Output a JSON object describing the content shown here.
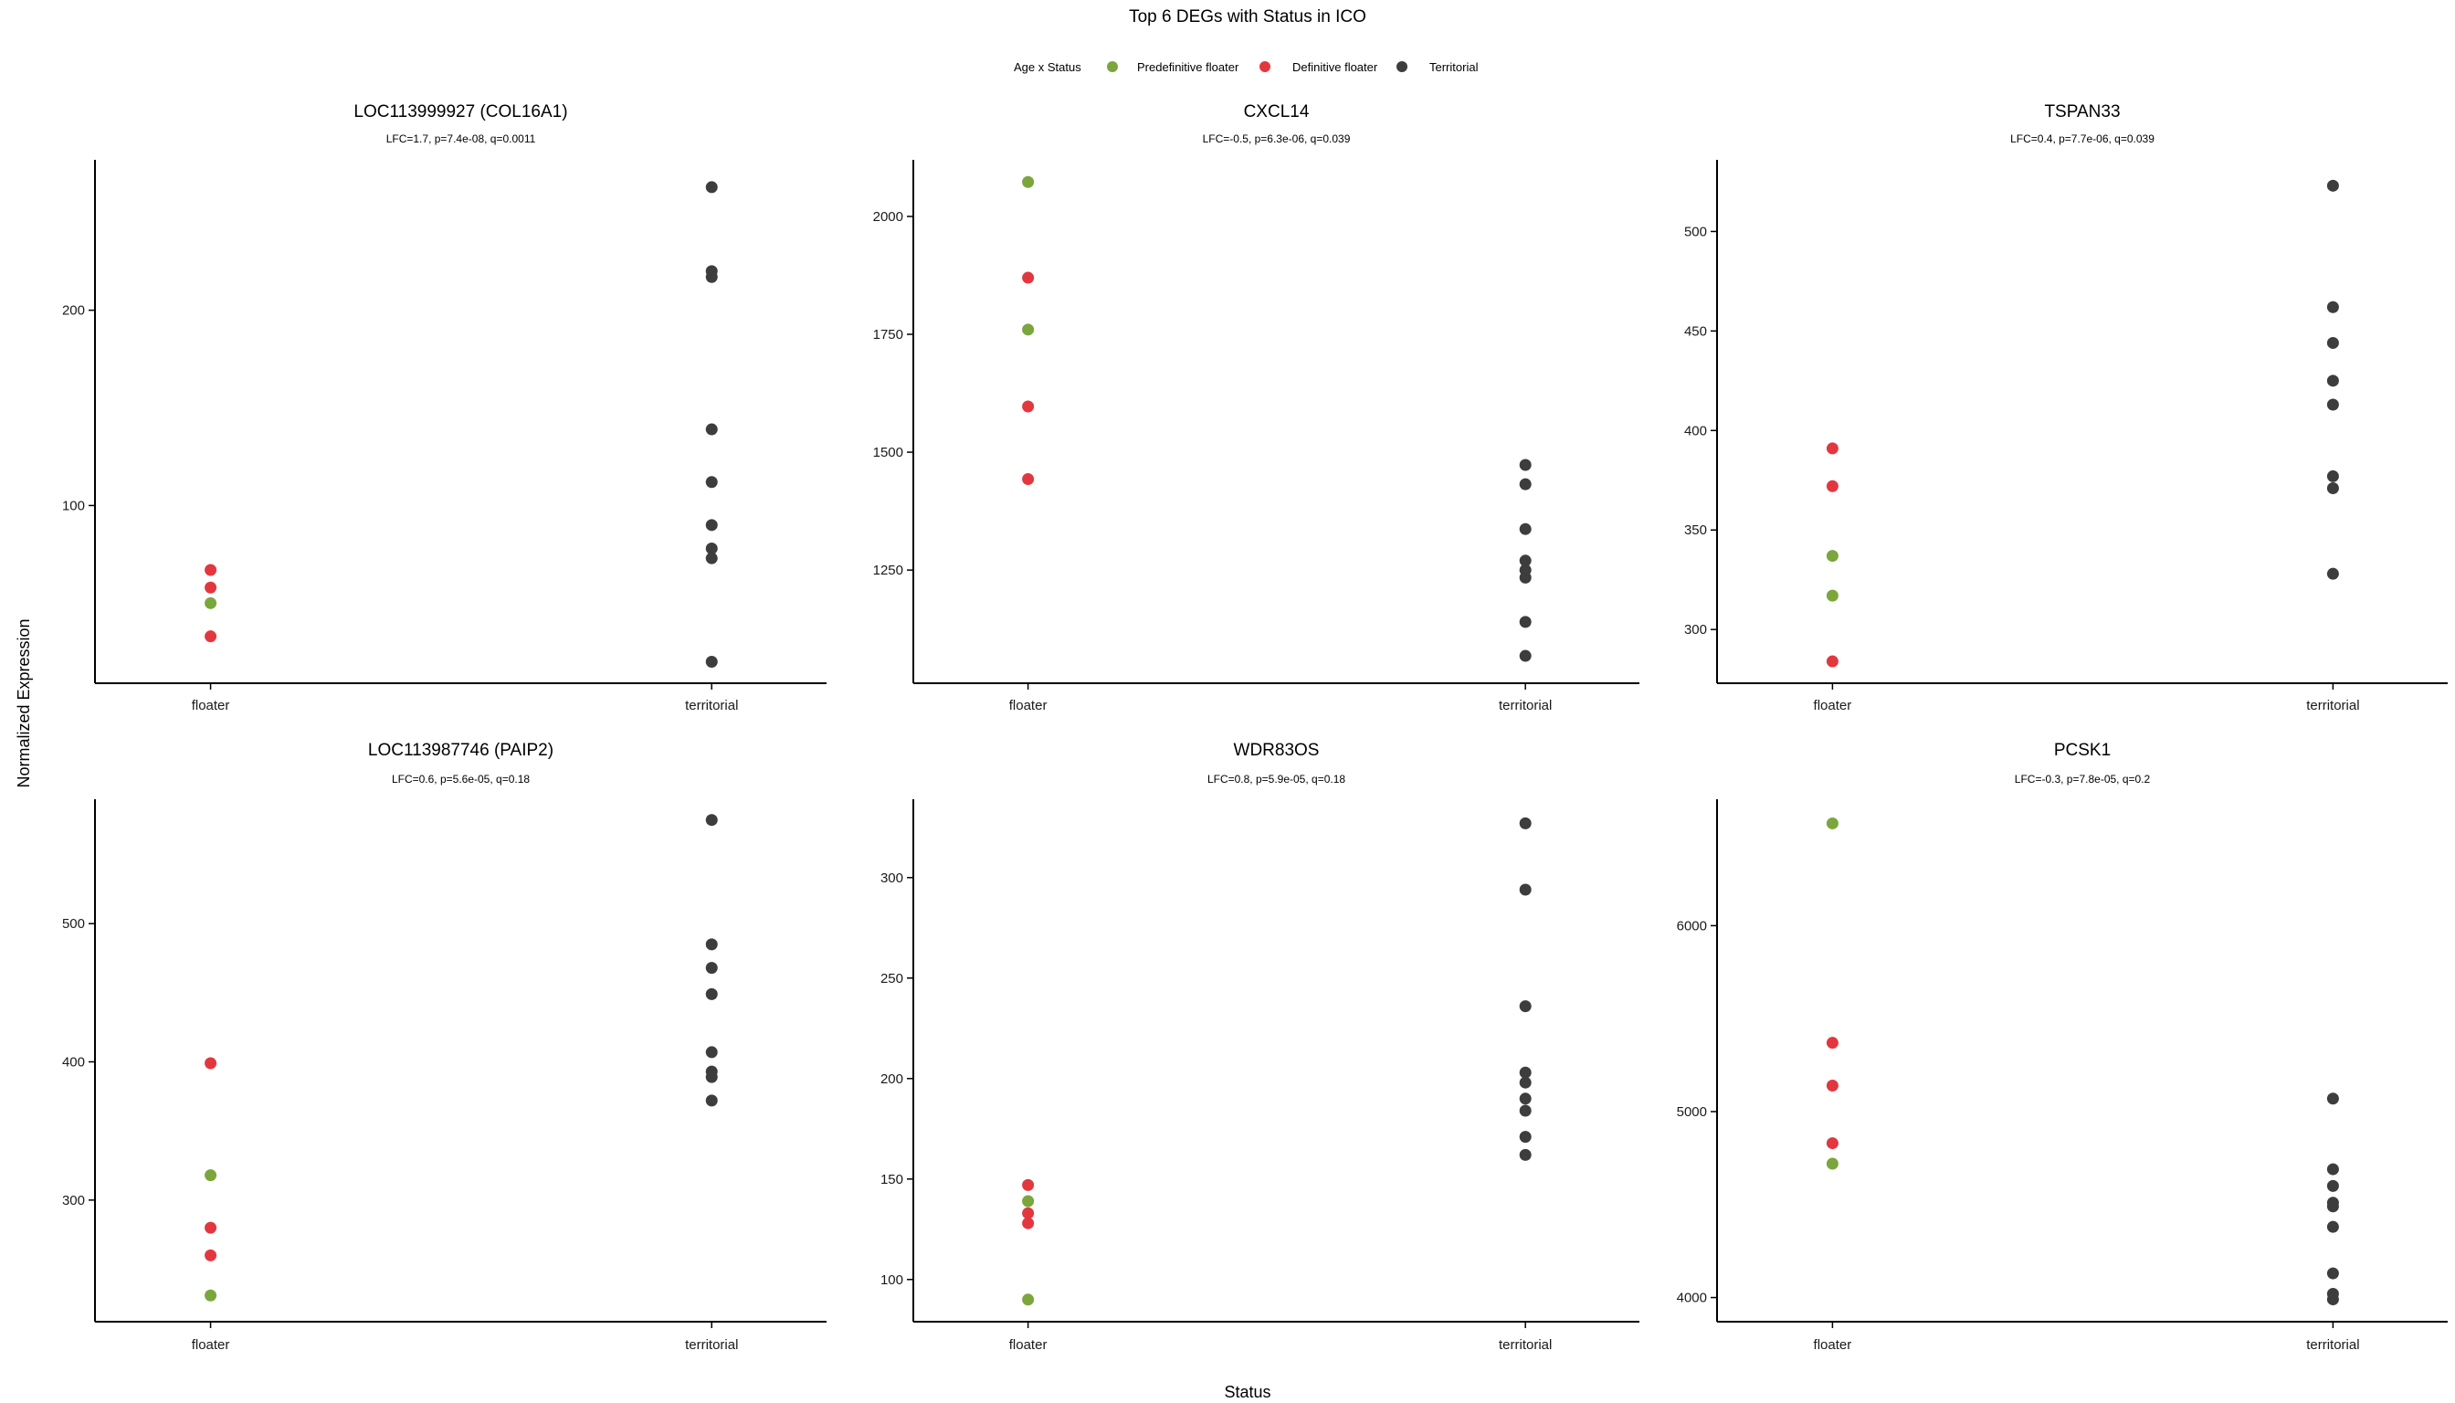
{
  "title": "Top 6 DEGs with Status in ICO",
  "xlabel": "Status",
  "ylabel": "Normalized Expression",
  "legend": {
    "title": "Age x Status",
    "placement": "top-center",
    "items": [
      {
        "label": "Predefinitive floater",
        "color": "#7aa63c",
        "icon": "dot-icon"
      },
      {
        "label": "Definitive floater",
        "color": "#e3373f",
        "icon": "dot-icon"
      },
      {
        "label": "Territorial",
        "color": "#3d3d3d",
        "icon": "dot-icon"
      }
    ]
  },
  "colors": {
    "pre": "#7aa63c",
    "def": "#e3373f",
    "ter": "#3d3d3d"
  },
  "chart_data": [
    {
      "type": "scatter",
      "title": "LOC113999927 (COL16A1)",
      "subtitle": "LFC=1.7, p=7.4e-08, q=0.0011",
      "categories": [
        "floater",
        "territorial"
      ],
      "yticks": [
        100,
        200
      ],
      "ylim": [
        9,
        277
      ],
      "grid": false,
      "points": [
        {
          "x": "floater",
          "group": "def",
          "y": 67
        },
        {
          "x": "floater",
          "group": "def",
          "y": 58
        },
        {
          "x": "floater",
          "group": "pre",
          "y": 50
        },
        {
          "x": "floater",
          "group": "def",
          "y": 33
        },
        {
          "x": "territorial",
          "group": "ter",
          "y": 263
        },
        {
          "x": "territorial",
          "group": "ter",
          "y": 220
        },
        {
          "x": "territorial",
          "group": "ter",
          "y": 217
        },
        {
          "x": "territorial",
          "group": "ter",
          "y": 139
        },
        {
          "x": "territorial",
          "group": "ter",
          "y": 112
        },
        {
          "x": "territorial",
          "group": "ter",
          "y": 90
        },
        {
          "x": "territorial",
          "group": "ter",
          "y": 78
        },
        {
          "x": "territorial",
          "group": "ter",
          "y": 73
        },
        {
          "x": "territorial",
          "group": "ter",
          "y": 20
        }
      ]
    },
    {
      "type": "scatter",
      "title": "CXCL14",
      "subtitle": "LFC=-0.5, p=6.3e-06, q=0.039",
      "categories": [
        "floater",
        "territorial"
      ],
      "yticks": [
        1250,
        1500,
        1750,
        2000
      ],
      "ylim": [
        1010,
        2120
      ],
      "grid": false,
      "points": [
        {
          "x": "floater",
          "group": "pre",
          "y": 2073
        },
        {
          "x": "floater",
          "group": "def",
          "y": 1870
        },
        {
          "x": "floater",
          "group": "pre",
          "y": 1760
        },
        {
          "x": "floater",
          "group": "def",
          "y": 1597
        },
        {
          "x": "floater",
          "group": "def",
          "y": 1443
        },
        {
          "x": "territorial",
          "group": "ter",
          "y": 1473
        },
        {
          "x": "territorial",
          "group": "ter",
          "y": 1432
        },
        {
          "x": "territorial",
          "group": "ter",
          "y": 1337
        },
        {
          "x": "territorial",
          "group": "ter",
          "y": 1270
        },
        {
          "x": "territorial",
          "group": "ter",
          "y": 1250
        },
        {
          "x": "territorial",
          "group": "ter",
          "y": 1234
        },
        {
          "x": "territorial",
          "group": "ter",
          "y": 1140
        },
        {
          "x": "territorial",
          "group": "ter",
          "y": 1068
        }
      ]
    },
    {
      "type": "scatter",
      "title": "TSPAN33",
      "subtitle": "LFC=0.4, p=7.7e-06, q=0.039",
      "categories": [
        "floater",
        "territorial"
      ],
      "yticks": [
        300,
        350,
        400,
        450,
        500
      ],
      "ylim": [
        273,
        536
      ],
      "grid": false,
      "points": [
        {
          "x": "floater",
          "group": "def",
          "y": 391
        },
        {
          "x": "floater",
          "group": "def",
          "y": 372
        },
        {
          "x": "floater",
          "group": "pre",
          "y": 337
        },
        {
          "x": "floater",
          "group": "pre",
          "y": 317
        },
        {
          "x": "floater",
          "group": "def",
          "y": 284
        },
        {
          "x": "territorial",
          "group": "ter",
          "y": 523
        },
        {
          "x": "territorial",
          "group": "ter",
          "y": 462
        },
        {
          "x": "territorial",
          "group": "ter",
          "y": 444
        },
        {
          "x": "territorial",
          "group": "ter",
          "y": 425
        },
        {
          "x": "territorial",
          "group": "ter",
          "y": 413
        },
        {
          "x": "territorial",
          "group": "ter",
          "y": 377
        },
        {
          "x": "territorial",
          "group": "ter",
          "y": 371
        },
        {
          "x": "territorial",
          "group": "ter",
          "y": 328
        }
      ]
    },
    {
      "type": "scatter",
      "title": "LOC113987746 (PAIP2)",
      "subtitle": "LFC=0.6, p=5.6e-05, q=0.18",
      "categories": [
        "floater",
        "territorial"
      ],
      "yticks": [
        300,
        400,
        500
      ],
      "ylim": [
        212,
        590
      ],
      "grid": false,
      "points": [
        {
          "x": "floater",
          "group": "def",
          "y": 399
        },
        {
          "x": "floater",
          "group": "pre",
          "y": 318
        },
        {
          "x": "floater",
          "group": "def",
          "y": 280
        },
        {
          "x": "floater",
          "group": "def",
          "y": 260
        },
        {
          "x": "floater",
          "group": "pre",
          "y": 231
        },
        {
          "x": "territorial",
          "group": "ter",
          "y": 575
        },
        {
          "x": "territorial",
          "group": "ter",
          "y": 485
        },
        {
          "x": "territorial",
          "group": "ter",
          "y": 468
        },
        {
          "x": "territorial",
          "group": "ter",
          "y": 449
        },
        {
          "x": "territorial",
          "group": "ter",
          "y": 407
        },
        {
          "x": "territorial",
          "group": "ter",
          "y": 393
        },
        {
          "x": "territorial",
          "group": "ter",
          "y": 389
        },
        {
          "x": "territorial",
          "group": "ter",
          "y": 372
        }
      ]
    },
    {
      "type": "scatter",
      "title": "WDR83OS",
      "subtitle": "LFC=0.8, p=5.9e-05, q=0.18",
      "categories": [
        "floater",
        "territorial"
      ],
      "yticks": [
        100,
        150,
        200,
        250,
        300
      ],
      "ylim": [
        79,
        339
      ],
      "grid": false,
      "points": [
        {
          "x": "floater",
          "group": "def",
          "y": 147
        },
        {
          "x": "floater",
          "group": "pre",
          "y": 139
        },
        {
          "x": "floater",
          "group": "def",
          "y": 133
        },
        {
          "x": "floater",
          "group": "def",
          "y": 128
        },
        {
          "x": "floater",
          "group": "pre",
          "y": 90
        },
        {
          "x": "territorial",
          "group": "ter",
          "y": 327
        },
        {
          "x": "territorial",
          "group": "ter",
          "y": 294
        },
        {
          "x": "territorial",
          "group": "ter",
          "y": 236
        },
        {
          "x": "territorial",
          "group": "ter",
          "y": 203
        },
        {
          "x": "territorial",
          "group": "ter",
          "y": 198
        },
        {
          "x": "territorial",
          "group": "ter",
          "y": 190
        },
        {
          "x": "territorial",
          "group": "ter",
          "y": 184
        },
        {
          "x": "territorial",
          "group": "ter",
          "y": 171
        },
        {
          "x": "territorial",
          "group": "ter",
          "y": 162
        }
      ]
    },
    {
      "type": "scatter",
      "title": "PCSK1",
      "subtitle": "LFC=-0.3, p=7.8e-05, q=0.2",
      "categories": [
        "floater",
        "territorial"
      ],
      "yticks": [
        4000,
        5000,
        6000
      ],
      "ylim": [
        3870,
        6680
      ],
      "grid": false,
      "points": [
        {
          "x": "floater",
          "group": "pre",
          "y": 6550
        },
        {
          "x": "floater",
          "group": "def",
          "y": 5370
        },
        {
          "x": "floater",
          "group": "def",
          "y": 5140
        },
        {
          "x": "floater",
          "group": "def",
          "y": 4830
        },
        {
          "x": "floater",
          "group": "pre",
          "y": 4720
        },
        {
          "x": "territorial",
          "group": "ter",
          "y": 5070
        },
        {
          "x": "territorial",
          "group": "ter",
          "y": 4690
        },
        {
          "x": "territorial",
          "group": "ter",
          "y": 4600
        },
        {
          "x": "territorial",
          "group": "ter",
          "y": 4510
        },
        {
          "x": "territorial",
          "group": "ter",
          "y": 4490
        },
        {
          "x": "territorial",
          "group": "ter",
          "y": 4380
        },
        {
          "x": "territorial",
          "group": "ter",
          "y": 4130
        },
        {
          "x": "territorial",
          "group": "ter",
          "y": 4020
        },
        {
          "x": "territorial",
          "group": "ter",
          "y": 3990
        }
      ]
    }
  ]
}
